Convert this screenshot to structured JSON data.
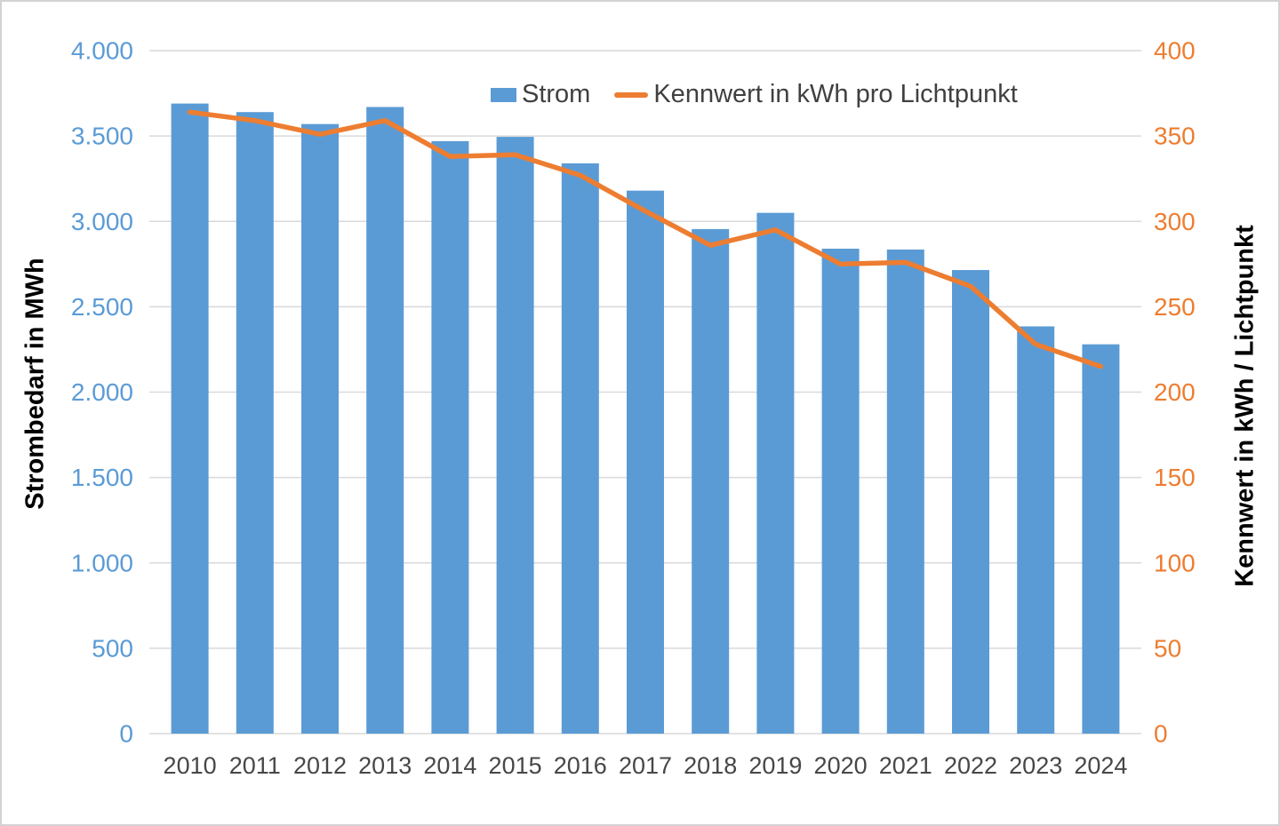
{
  "chart_data": {
    "type": "combo",
    "categories": [
      "2010",
      "2011",
      "2012",
      "2013",
      "2014",
      "2015",
      "2016",
      "2017",
      "2018",
      "2019",
      "2020",
      "2021",
      "2022",
      "2023",
      "2024"
    ],
    "series": [
      {
        "name": "Strom",
        "type": "bar",
        "axis": "left",
        "color": "#5B9BD5",
        "values": [
          3690,
          3640,
          3570,
          3670,
          3470,
          3495,
          3340,
          3180,
          2955,
          3050,
          2840,
          2835,
          2715,
          2385,
          2280
        ]
      },
      {
        "name": "Kennwert in kWh pro Lichtpunkt",
        "type": "line",
        "axis": "right",
        "color": "#ED7D31",
        "values": [
          364,
          359,
          351,
          359,
          338,
          339,
          327,
          306,
          286,
          295,
          275,
          276,
          262,
          228,
          215
        ]
      }
    ],
    "axes": {
      "left": {
        "title": "Strombedarf in MWh",
        "min": 0,
        "max": 4000,
        "step": 500,
        "tick_labels": [
          "0",
          "500",
          "1.000",
          "1.500",
          "2.000",
          "2.500",
          "3.000",
          "3.500",
          "4.000"
        ],
        "color": "#5B9BD5"
      },
      "right": {
        "title": "Kennwert in kWh / Lichtpunkt",
        "min": 0,
        "max": 400,
        "step": 50,
        "tick_labels": [
          "0",
          "50",
          "100",
          "150",
          "200",
          "250",
          "300",
          "350",
          "400"
        ],
        "color": "#ED7D31"
      },
      "x": {
        "color": "#474747"
      }
    },
    "legend": {
      "position": "top"
    },
    "grid": true,
    "gridline_color": "#D9D9D9",
    "background": "#FFFFFF"
  }
}
